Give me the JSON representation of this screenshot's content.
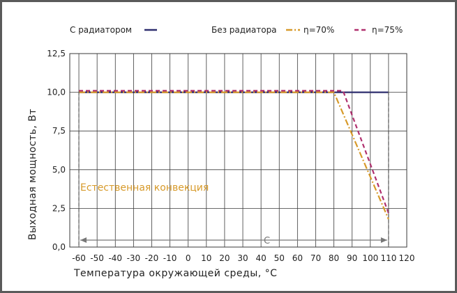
{
  "chart_data": {
    "type": "line",
    "title": "",
    "xlabel": "Температура окружающей среды, °C",
    "ylabel": "Выходная мощность, Вт",
    "xlim": [
      -65,
      120
    ],
    "ylim": [
      0,
      12.5
    ],
    "x_ticks": [
      "-60",
      "-50",
      "-40",
      "-30",
      "-20",
      "-10",
      "0",
      "10",
      "20",
      "30",
      "40",
      "50",
      "60",
      "70",
      "80",
      "90",
      "100",
      "110",
      "120"
    ],
    "y_ticks": [
      "0,0",
      "2,5",
      "5,0",
      "7,5",
      "10,0",
      "12,5"
    ],
    "grid": true,
    "legend_position": "top",
    "legend_labels": {
      "with_radiator": "С радиатором",
      "without_radiator": "Без радиатора"
    },
    "series": [
      {
        "name": "С радиатором",
        "color": "#2e2e6e",
        "style": "solid",
        "x": [
          -60,
          110
        ],
        "y": [
          10.0,
          10.0
        ]
      },
      {
        "name": "η=70%",
        "color": "#d79a2a",
        "style": "dashdot",
        "x": [
          -60,
          80,
          110
        ],
        "y": [
          10.0,
          10.0,
          1.8
        ]
      },
      {
        "name": "η=75%",
        "color": "#b0306e",
        "style": "dashed",
        "x": [
          -60,
          85,
          110
        ],
        "y": [
          10.1,
          10.1,
          2.2
        ]
      }
    ],
    "annotations": {
      "region_label": "Естественная конвекция",
      "range_marker": "C",
      "range_marker_x": [
        -60,
        110
      ]
    }
  }
}
